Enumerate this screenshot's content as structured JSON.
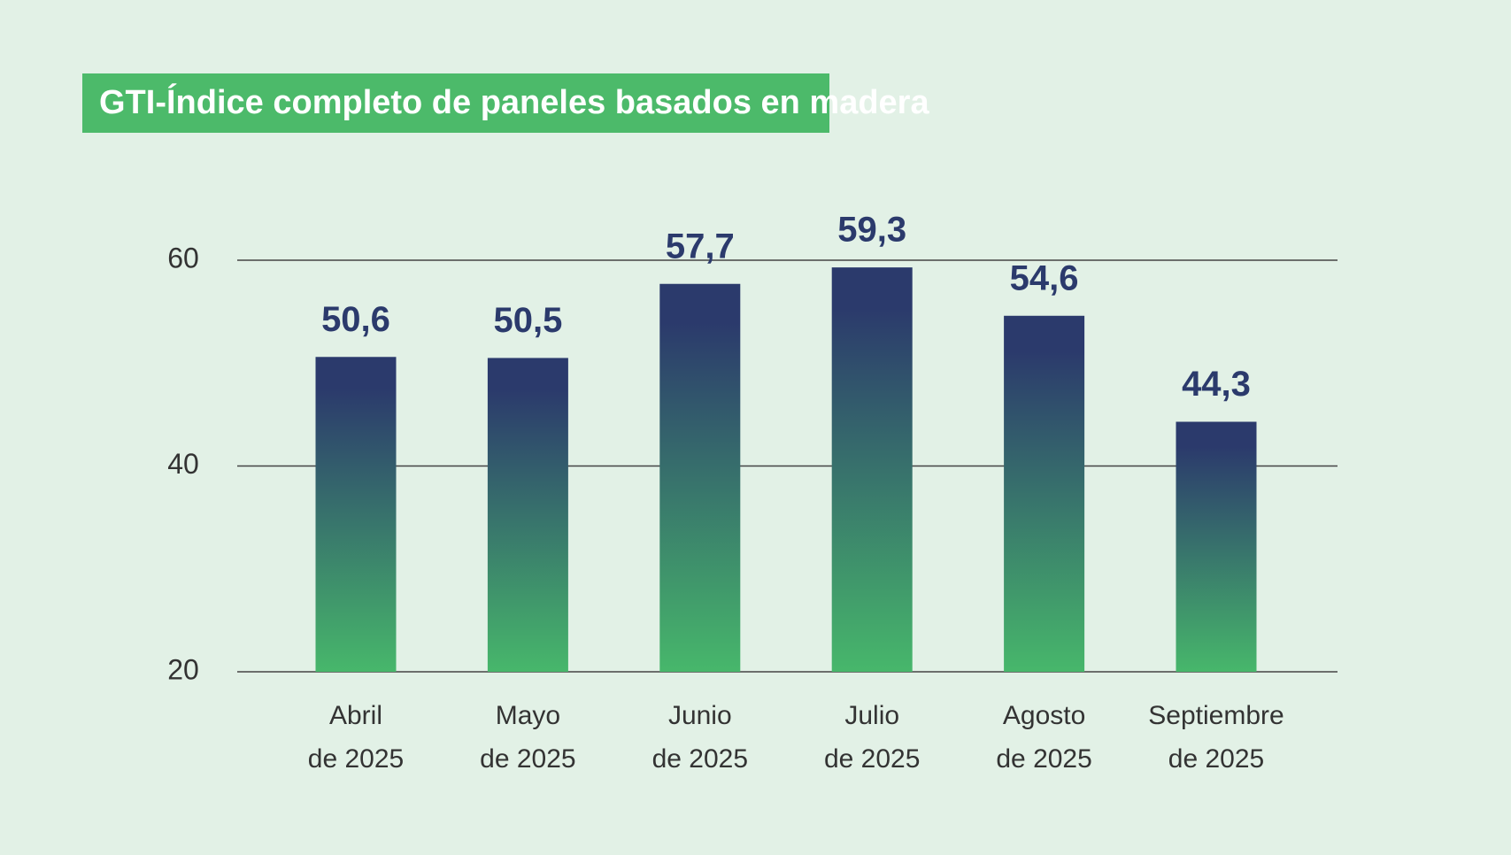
{
  "chart_data": {
    "type": "bar",
    "title": "GTI-Índice completo de paneles basados en madera",
    "categories": [
      "Abril de 2025",
      "Mayo de 2025",
      "Junio de 2025",
      "Julio de 2025",
      "Agosto de 2025",
      "Septiembre de 2025"
    ],
    "values": [
      50.6,
      50.5,
      57.7,
      59.3,
      54.6,
      44.3
    ],
    "value_labels": [
      "50,6",
      "50,5",
      "57,7",
      "59,3",
      "54,6",
      "44,3"
    ],
    "color": [
      "#2b3a6c",
      "#47b76b"
    ],
    "ylim": [
      20,
      60
    ],
    "yticks": [
      20,
      40,
      60
    ],
    "grid": true
  }
}
